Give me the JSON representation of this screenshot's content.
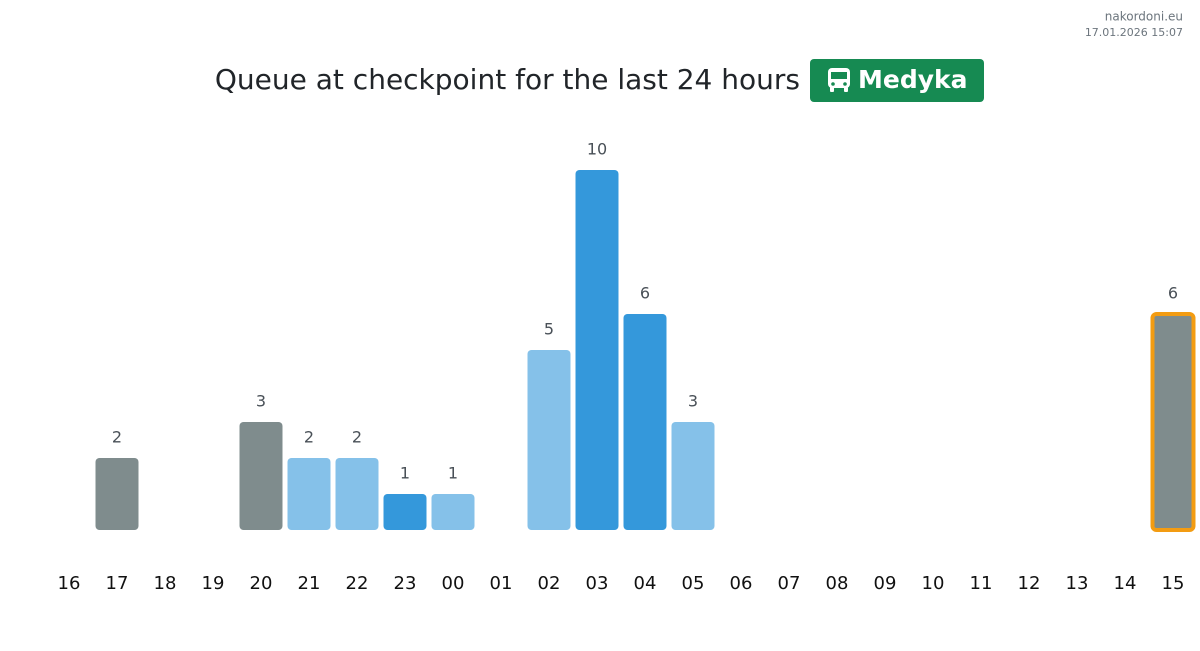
{
  "chart_data": {
    "type": "bar",
    "site": "nakordoni.eu",
    "timestamp": "17.01.2026 15:07",
    "title": "Queue at checkpoint for the last 24 hours",
    "badge": "Medyka",
    "badge_color": "#168a52",
    "categories": [
      "16",
      "17",
      "18",
      "19",
      "20",
      "21",
      "22",
      "23",
      "00",
      "01",
      "02",
      "03",
      "04",
      "05",
      "06",
      "07",
      "08",
      "09",
      "10",
      "11",
      "12",
      "13",
      "14",
      "15"
    ],
    "values": [
      null,
      2,
      null,
      null,
      3,
      2,
      2,
      1,
      1,
      null,
      5,
      10,
      6,
      3,
      null,
      null,
      null,
      null,
      null,
      null,
      null,
      null,
      null,
      6
    ],
    "colors": [
      null,
      "#7f8c8d",
      null,
      null,
      "#7f8c8d",
      "#85c1e9",
      "#85c1e9",
      "#3498db",
      "#85c1e9",
      null,
      "#85c1e9",
      "#3498db",
      "#3498db",
      "#85c1e9",
      null,
      null,
      null,
      null,
      null,
      null,
      null,
      null,
      null,
      "#7f8c8d"
    ],
    "highlight": "15",
    "highlight_color": "#f39c12",
    "ylim": [
      0,
      10
    ]
  }
}
